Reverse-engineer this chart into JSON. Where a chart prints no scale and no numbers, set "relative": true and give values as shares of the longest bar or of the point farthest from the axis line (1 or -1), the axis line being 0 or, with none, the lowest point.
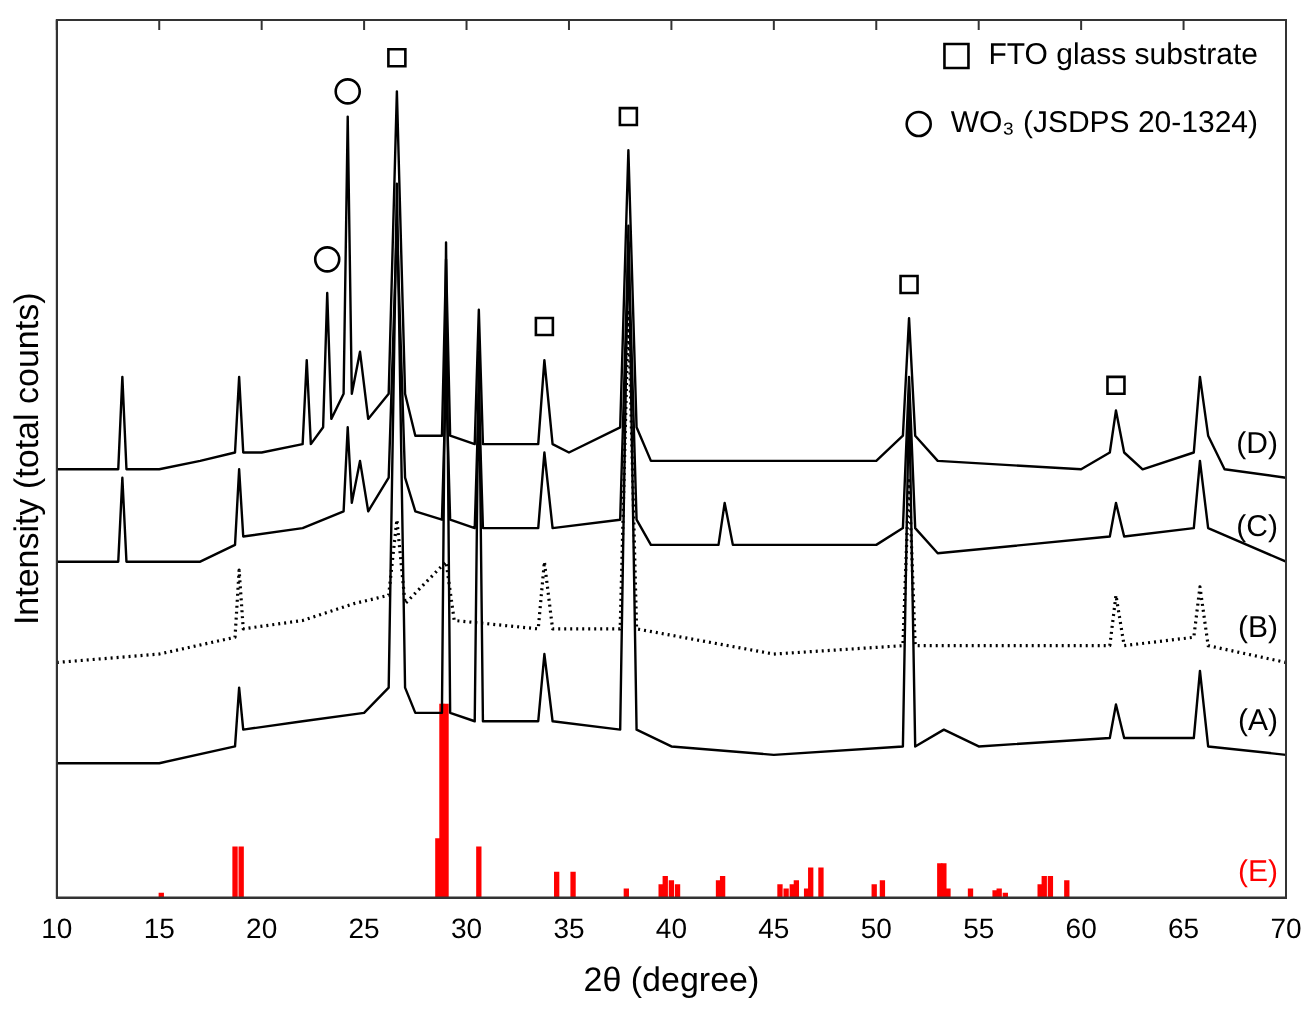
{
  "chart_data": {
    "type": "line",
    "xlabel": "2θ (degree)",
    "ylabel": "Intensity (total counts)",
    "relative": true,
    "xlim": [
      10,
      70
    ],
    "xticks": [
      10,
      15,
      20,
      25,
      30,
      35,
      40,
      45,
      50,
      55,
      60,
      65,
      70
    ],
    "legend": "top right",
    "series": [
      {
        "name": "(D)",
        "color": "#000000",
        "line_style": "solid",
        "x": [
          10,
          12,
          13.0,
          13.2,
          13.4,
          15,
          17,
          18.7,
          18.9,
          19.1,
          20,
          22.0,
          22.2,
          22.4,
          23.0,
          23.2,
          23.4,
          24.0,
          24.2,
          24.4,
          24.8,
          25.2,
          26.2,
          26.6,
          27.0,
          27.5,
          28.8,
          29.0,
          29.2,
          30.4,
          30.6,
          30.8,
          33.5,
          33.8,
          34.2,
          35,
          37.5,
          37.9,
          38.3,
          39,
          45,
          50,
          51.3,
          51.6,
          51.9,
          53,
          60,
          61.4,
          61.7,
          62.1,
          63,
          65.5,
          65.8,
          66.2,
          67,
          70
        ],
        "values": [
          0.51,
          0.51,
          0.51,
          0.62,
          0.51,
          0.51,
          0.52,
          0.53,
          0.62,
          0.53,
          0.53,
          0.54,
          0.64,
          0.54,
          0.56,
          0.72,
          0.57,
          0.6,
          0.93,
          0.6,
          0.65,
          0.57,
          0.6,
          0.96,
          0.6,
          0.55,
          0.55,
          0.76,
          0.55,
          0.54,
          0.7,
          0.54,
          0.54,
          0.64,
          0.54,
          0.53,
          0.56,
          0.89,
          0.56,
          0.52,
          0.52,
          0.52,
          0.55,
          0.69,
          0.55,
          0.52,
          0.51,
          0.53,
          0.58,
          0.53,
          0.51,
          0.53,
          0.62,
          0.55,
          0.51,
          0.5
        ]
      },
      {
        "name": "(C)",
        "color": "#000000",
        "line_style": "solid",
        "x": [
          10,
          13.0,
          13.2,
          13.4,
          17,
          18.7,
          18.9,
          19.1,
          22,
          24.0,
          24.2,
          24.4,
          24.8,
          25.2,
          26.2,
          26.6,
          27.0,
          27.5,
          28.8,
          29.0,
          29.2,
          30.4,
          30.6,
          30.8,
          33.5,
          33.8,
          34.2,
          37.5,
          37.9,
          38.3,
          39,
          42.3,
          42.6,
          43,
          50,
          51.3,
          51.6,
          51.9,
          53,
          61.4,
          61.7,
          62.1,
          65.5,
          65.8,
          66.2,
          70
        ],
        "values": [
          0.4,
          0.4,
          0.5,
          0.4,
          0.4,
          0.42,
          0.51,
          0.43,
          0.44,
          0.46,
          0.56,
          0.47,
          0.52,
          0.46,
          0.5,
          0.8,
          0.5,
          0.46,
          0.45,
          0.62,
          0.45,
          0.44,
          0.6,
          0.44,
          0.44,
          0.53,
          0.44,
          0.45,
          0.78,
          0.45,
          0.42,
          0.42,
          0.47,
          0.42,
          0.42,
          0.44,
          0.62,
          0.44,
          0.41,
          0.43,
          0.47,
          0.43,
          0.44,
          0.52,
          0.44,
          0.4
        ]
      },
      {
        "name": "(B)",
        "color": "#000000",
        "line_style": "dotted",
        "x": [
          10,
          15,
          18.7,
          18.9,
          19.1,
          22,
          24.5,
          26.2,
          26.6,
          27.0,
          29.0,
          29.4,
          33.5,
          33.8,
          34.2,
          37.5,
          37.9,
          38.3,
          45,
          51.3,
          51.6,
          51.9,
          61.4,
          61.7,
          62.1,
          65.5,
          65.8,
          66.2,
          70
        ],
        "values": [
          0.28,
          0.29,
          0.31,
          0.39,
          0.32,
          0.33,
          0.35,
          0.36,
          0.45,
          0.35,
          0.4,
          0.33,
          0.32,
          0.4,
          0.32,
          0.32,
          0.7,
          0.32,
          0.29,
          0.3,
          0.5,
          0.3,
          0.3,
          0.36,
          0.3,
          0.31,
          0.37,
          0.3,
          0.28
        ]
      },
      {
        "name": "(A)",
        "color": "#000000",
        "line_style": "solid",
        "x": [
          10,
          13,
          15,
          18.7,
          18.9,
          19.1,
          22,
          25,
          26.2,
          26.6,
          27.0,
          27.5,
          28.8,
          29.0,
          29.2,
          30.4,
          30.6,
          30.8,
          33.5,
          33.8,
          34.2,
          37.5,
          37.9,
          38.3,
          40,
          45,
          51.3,
          51.6,
          51.9,
          53.3,
          55,
          61.4,
          61.7,
          62.1,
          65.5,
          65.8,
          66.2,
          70
        ],
        "values": [
          0.16,
          0.16,
          0.16,
          0.18,
          0.25,
          0.2,
          0.21,
          0.22,
          0.25,
          0.85,
          0.25,
          0.22,
          0.22,
          0.78,
          0.22,
          0.21,
          0.65,
          0.21,
          0.21,
          0.29,
          0.21,
          0.2,
          0.8,
          0.2,
          0.18,
          0.17,
          0.18,
          0.6,
          0.18,
          0.2,
          0.18,
          0.19,
          0.23,
          0.19,
          0.19,
          0.27,
          0.18,
          0.17
        ]
      },
      {
        "name": "(E)",
        "type": "bar",
        "color": "#ff0000",
        "x": [
          15.1,
          18.7,
          19.0,
          28.6,
          28.8,
          29.0,
          30.6,
          34.4,
          35.2,
          37.8,
          39.5,
          39.7,
          40.0,
          40.3,
          42.3,
          42.5,
          45.3,
          45.6,
          45.9,
          46.1,
          46.6,
          46.8,
          47.3,
          49.9,
          50.3,
          53.1,
          53.3,
          53.5,
          54.6,
          55.8,
          56.0,
          56.3,
          58.0,
          58.2,
          58.5,
          59.3
        ],
        "values": [
          0.005,
          0.06,
          0.06,
          0.07,
          0.23,
          0.23,
          0.06,
          0.03,
          0.03,
          0.01,
          0.015,
          0.025,
          0.02,
          0.015,
          0.02,
          0.025,
          0.015,
          0.01,
          0.015,
          0.02,
          0.01,
          0.035,
          0.035,
          0.015,
          0.02,
          0.04,
          0.04,
          0.01,
          0.01,
          0.008,
          0.01,
          0.005,
          0.015,
          0.025,
          0.025,
          0.02
        ]
      },
      {
        "name": "FTO glass substrate",
        "type": "scatter",
        "marker": "square",
        "color": "#000000",
        "x": [
          26.6,
          33.8,
          37.9,
          51.6,
          61.7
        ],
        "values": [
          1.0,
          0.68,
          0.93,
          0.73,
          0.61
        ]
      },
      {
        "name": "WO₃ (JSDPS 20-1324)",
        "type": "scatter",
        "marker": "circle",
        "color": "#000000",
        "x": [
          23.2,
          24.2
        ],
        "values": [
          0.76,
          0.96
        ]
      }
    ]
  }
}
